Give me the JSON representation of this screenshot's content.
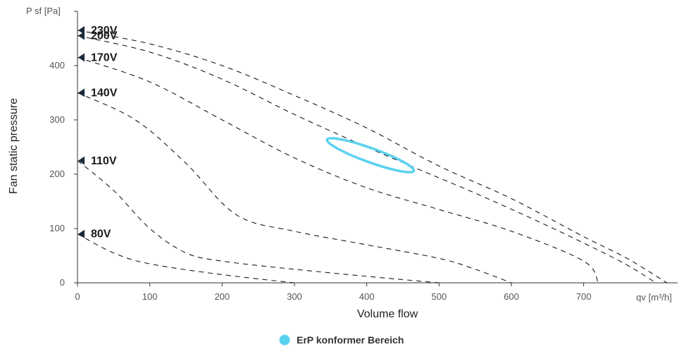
{
  "chart_data": {
    "type": "line",
    "title": "",
    "xlabel": "Volume flow",
    "ylabel": "Fan static pressure",
    "x_unit_label": "qv [m³/h]",
    "y_unit_label": "P sf [Pa]",
    "xlim": [
      0,
      830
    ],
    "ylim": [
      0,
      500
    ],
    "x_ticks": [
      "0",
      "100",
      "200",
      "300",
      "400",
      "500",
      "600",
      "700"
    ],
    "y_ticks": [
      "0",
      "100",
      "200",
      "300",
      "400"
    ],
    "grid": false,
    "line_color": "#1a1a1a",
    "series": [
      {
        "name": "230V",
        "points": [
          [
            0,
            465
          ],
          [
            100,
            440
          ],
          [
            200,
            400
          ],
          [
            300,
            345
          ],
          [
            400,
            285
          ],
          [
            500,
            215
          ],
          [
            600,
            155
          ],
          [
            700,
            85
          ],
          [
            760,
            45
          ],
          [
            815,
            0
          ]
        ]
      },
      {
        "name": "200V",
        "points": [
          [
            0,
            455
          ],
          [
            100,
            425
          ],
          [
            200,
            375
          ],
          [
            300,
            310
          ],
          [
            400,
            250
          ],
          [
            470,
            210
          ],
          [
            550,
            165
          ],
          [
            650,
            105
          ],
          [
            750,
            40
          ],
          [
            800,
            0
          ]
        ]
      },
      {
        "name": "170V",
        "points": [
          [
            0,
            415
          ],
          [
            100,
            370
          ],
          [
            200,
            300
          ],
          [
            300,
            230
          ],
          [
            400,
            175
          ],
          [
            500,
            135
          ],
          [
            600,
            95
          ],
          [
            700,
            40
          ],
          [
            720,
            0
          ]
        ]
      },
      {
        "name": "140V",
        "points": [
          [
            0,
            350
          ],
          [
            80,
            300
          ],
          [
            150,
            220
          ],
          [
            220,
            125
          ],
          [
            300,
            95
          ],
          [
            400,
            70
          ],
          [
            500,
            45
          ],
          [
            550,
            25
          ],
          [
            600,
            0
          ]
        ]
      },
      {
        "name": "110V",
        "points": [
          [
            0,
            225
          ],
          [
            50,
            170
          ],
          [
            100,
            100
          ],
          [
            150,
            55
          ],
          [
            200,
            40
          ],
          [
            300,
            25
          ],
          [
            400,
            12
          ],
          [
            500,
            0
          ]
        ]
      },
      {
        "name": "80V",
        "points": [
          [
            0,
            90
          ],
          [
            50,
            55
          ],
          [
            100,
            35
          ],
          [
            200,
            15
          ],
          [
            300,
            0
          ]
        ]
      }
    ],
    "erp_region": {
      "name": "ErP konformer Bereich",
      "color": "#5bd1f0",
      "center": [
        405,
        235
      ],
      "x_semi_axis": 60,
      "y_semi_axis": 13,
      "slope": -0.48
    },
    "legend": {
      "placement": "bottom-center",
      "entries": [
        "ErP konformer Bereich"
      ]
    }
  }
}
